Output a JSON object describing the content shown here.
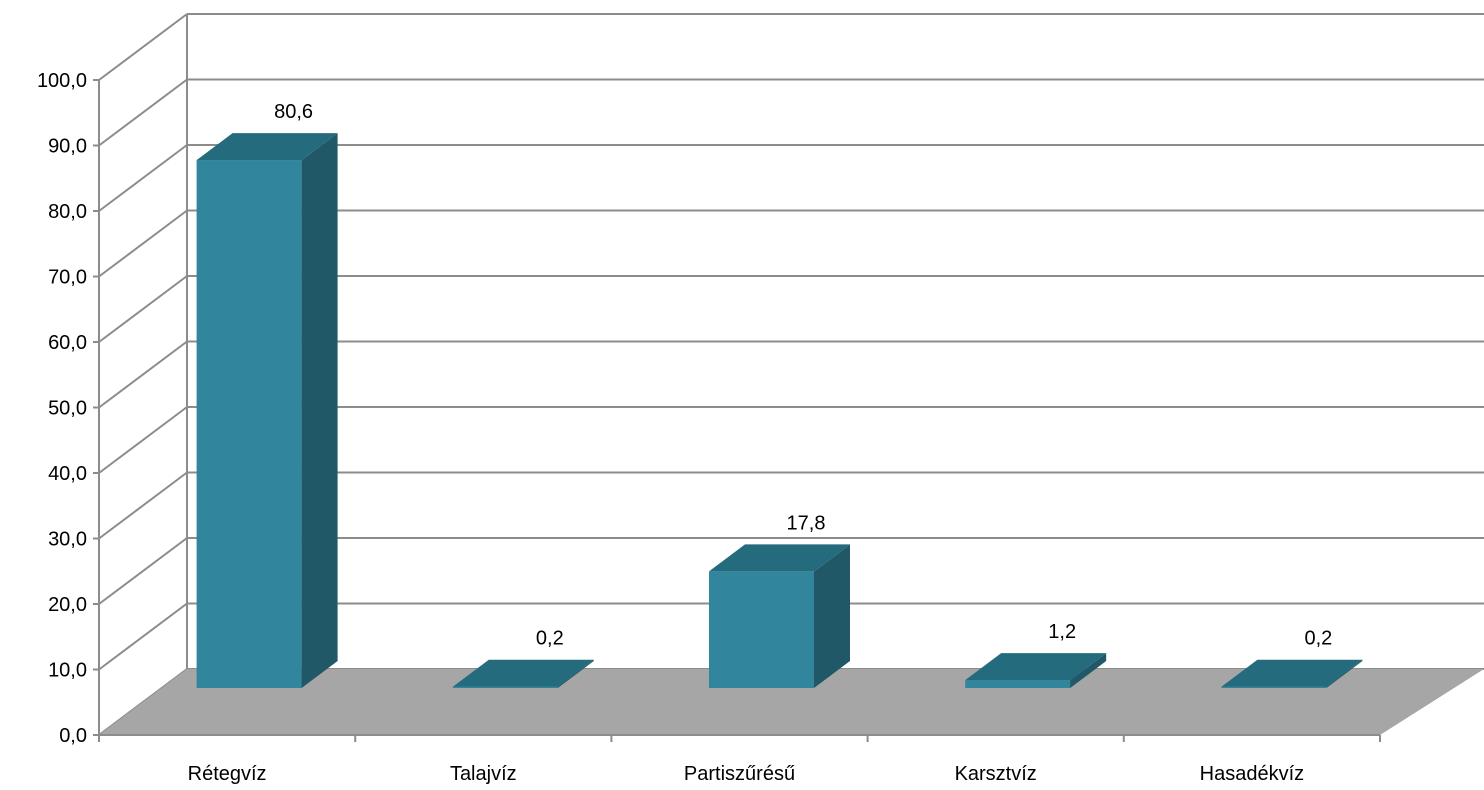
{
  "chart_data": {
    "type": "bar",
    "style": "3d-column",
    "title": "",
    "xlabel": "",
    "ylabel": "",
    "categories": [
      "Rétegvíz",
      "Talajvíz",
      "Partiszűrésű",
      "Karsztvíz",
      "Hasadékvíz"
    ],
    "values": [
      80.6,
      0.2,
      17.8,
      1.2,
      0.2
    ],
    "value_labels": [
      "80,6",
      "0,2",
      "17,8",
      "1,2",
      "0,2"
    ],
    "ylim": [
      0,
      100
    ],
    "y_ticks": [
      {
        "value": 0,
        "label": "0,0"
      },
      {
        "value": 10,
        "label": "10,0"
      },
      {
        "value": 20,
        "label": "20,0"
      },
      {
        "value": 30,
        "label": "30,0"
      },
      {
        "value": 40,
        "label": "40,0"
      },
      {
        "value": 50,
        "label": "50,0"
      },
      {
        "value": 60,
        "label": "60,0"
      },
      {
        "value": 70,
        "label": "70,0"
      },
      {
        "value": 80,
        "label": "80,0"
      },
      {
        "value": 90,
        "label": "90,0"
      },
      {
        "value": 100,
        "label": "100,0"
      }
    ],
    "grid": true,
    "legend": "none",
    "colors": {
      "bar_front": "#31859c",
      "bar_side": "#215868",
      "bar_top": "#256b7e",
      "floor": "#a6a6a6",
      "gridline": "#8c8c8c"
    }
  }
}
